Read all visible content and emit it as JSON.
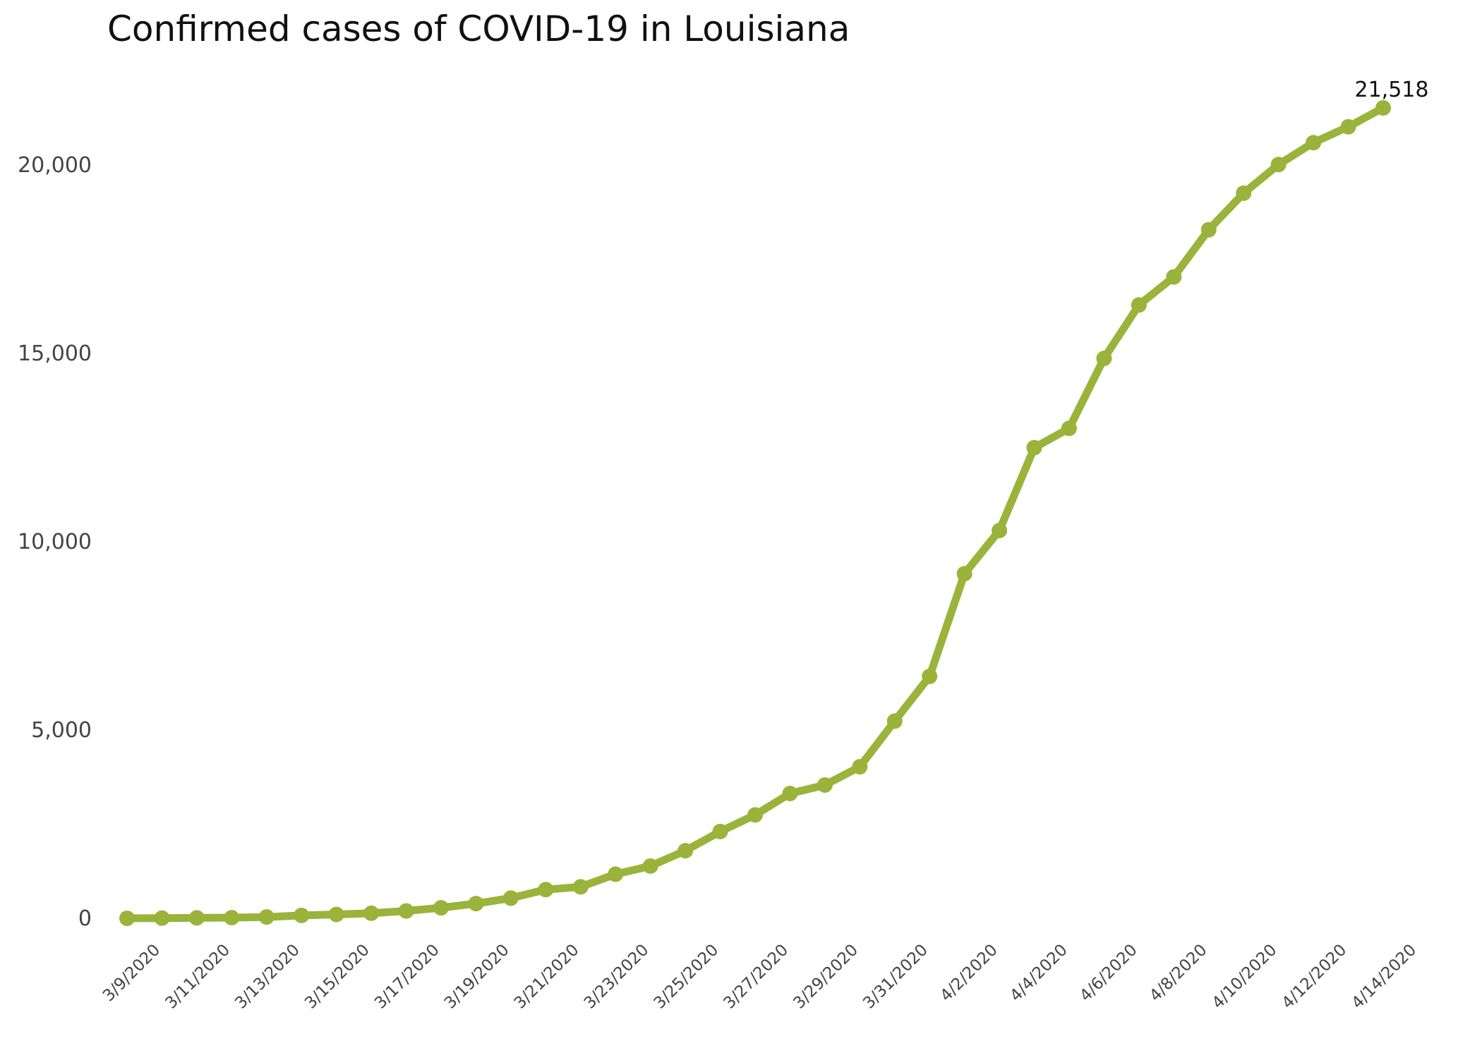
{
  "chart_data": {
    "type": "line",
    "title": "Confirmed cases of COVID-19 in Louisiana",
    "xlabel": "",
    "ylabel": "",
    "ylim": [
      0,
      22000
    ],
    "grid": false,
    "legend": "none",
    "color": "#9ab33a",
    "y_ticks": [
      0,
      5000,
      10000,
      15000,
      20000
    ],
    "y_tick_labels": [
      "0",
      "5,000",
      "10,000",
      "15,000",
      "20,000"
    ],
    "x_tick_labels": [
      "3/9/2020",
      "3/11/2020",
      "3/13/2020",
      "3/15/2020",
      "3/17/2020",
      "3/19/2020",
      "3/21/2020",
      "3/23/2020",
      "3/25/2020",
      "3/27/2020",
      "3/29/2020",
      "3/31/2020",
      "4/2/2020",
      "4/4/2020",
      "4/6/2020",
      "4/8/2020",
      "4/10/2020",
      "4/12/2020",
      "4/14/2020"
    ],
    "x_tick_every": 2,
    "categories": [
      "3/9/2020",
      "3/10/2020",
      "3/11/2020",
      "3/12/2020",
      "3/13/2020",
      "3/14/2020",
      "3/15/2020",
      "3/16/2020",
      "3/17/2020",
      "3/18/2020",
      "3/19/2020",
      "3/20/2020",
      "3/21/2020",
      "3/22/2020",
      "3/23/2020",
      "3/24/2020",
      "3/25/2020",
      "3/26/2020",
      "3/27/2020",
      "3/28/2020",
      "3/29/2020",
      "3/30/2020",
      "3/31/2020",
      "4/1/2020",
      "4/2/2020",
      "4/3/2020",
      "4/4/2020",
      "4/5/2020",
      "4/6/2020",
      "4/7/2020",
      "4/8/2020",
      "4/9/2020",
      "4/10/2020",
      "4/11/2020",
      "4/12/2020",
      "4/13/2020",
      "4/14/2020"
    ],
    "series": [
      {
        "name": "Confirmed cases",
        "values": [
          1,
          6,
          13,
          19,
          36,
          77,
          103,
          136,
          196,
          280,
          392,
          537,
          763,
          837,
          1172,
          1388,
          1795,
          2305,
          2746,
          3315,
          3540,
          4025,
          5237,
          6424,
          9150,
          10297,
          12496,
          13010,
          14867,
          16284,
          17030,
          18283,
          19253,
          20014,
          20595,
          21016,
          21518
        ]
      }
    ],
    "annotations": [
      {
        "index": 36,
        "text": "21,518"
      }
    ]
  }
}
